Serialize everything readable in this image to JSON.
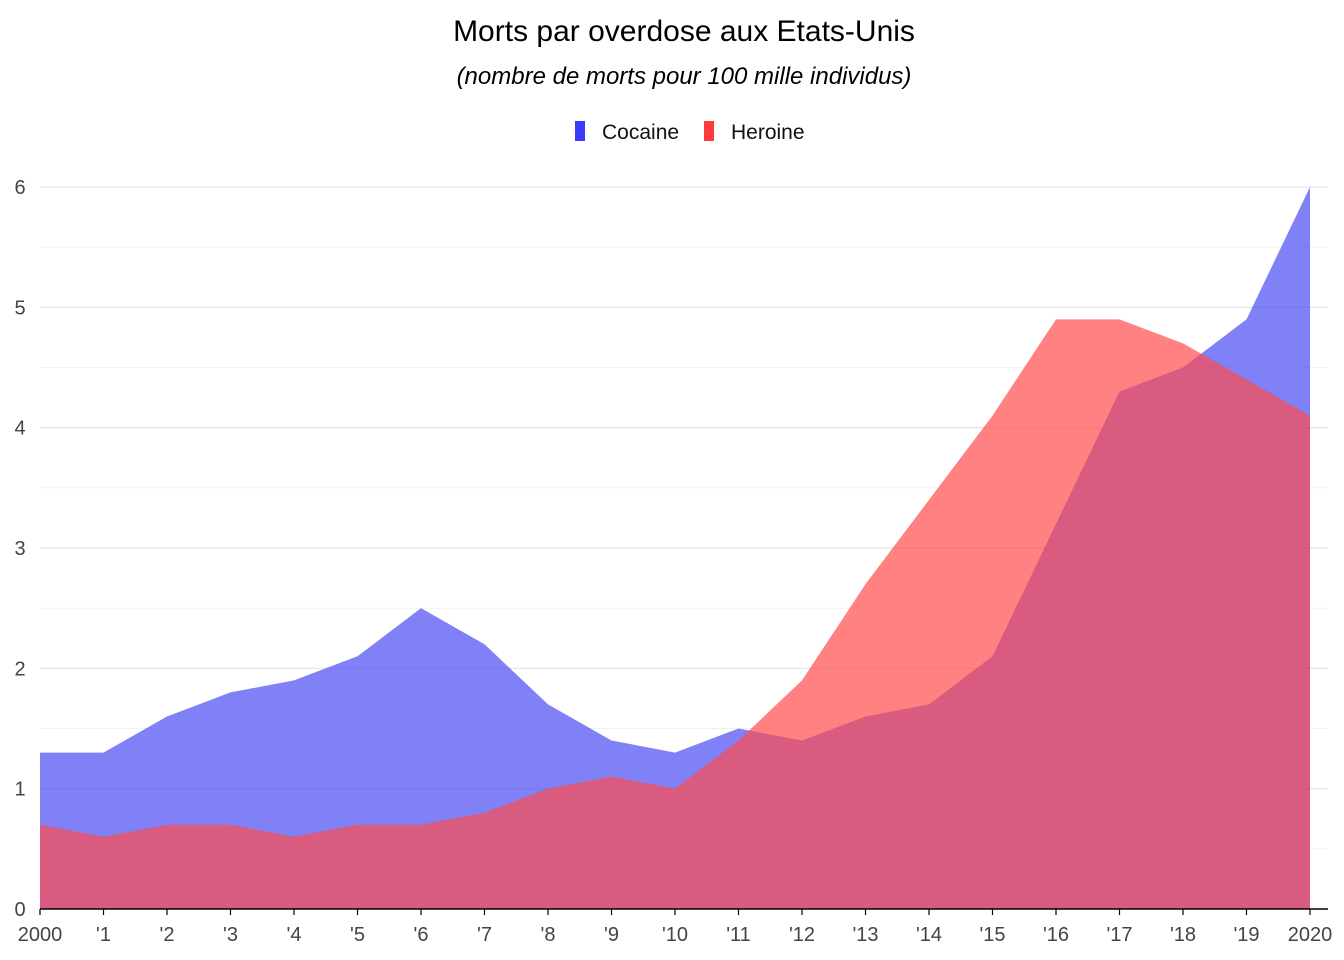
{
  "chart_data": {
    "type": "area",
    "title": "Morts par overdose aux Etats-Unis",
    "subtitle": "(nombre de morts pour 100 mille individus)",
    "xlabel": "",
    "ylabel": "",
    "x": [
      2000,
      2001,
      2002,
      2003,
      2004,
      2005,
      2006,
      2007,
      2008,
      2009,
      2010,
      2011,
      2012,
      2013,
      2014,
      2015,
      2016,
      2017,
      2018,
      2019,
      2020
    ],
    "x_tick_labels": [
      "2000",
      "'1",
      "'2",
      "'3",
      "'4",
      "'5",
      "'6",
      "'7",
      "'8",
      "'9",
      "'10",
      "'11",
      "'12",
      "'13",
      "'14",
      "'15",
      "'16",
      "'17",
      "'18",
      "'19",
      "2020"
    ],
    "y_ticks": [
      0,
      1,
      2,
      3,
      4,
      5,
      6
    ],
    "ylim": [
      0,
      6
    ],
    "grid": true,
    "legend_position": "top-center",
    "series": [
      {
        "name": "Cocaine",
        "color": "#4a4af4",
        "legend_color": "#3b3bff",
        "values": [
          1.3,
          1.3,
          1.6,
          1.8,
          1.9,
          2.1,
          2.5,
          2.2,
          1.7,
          1.4,
          1.3,
          1.5,
          1.4,
          1.6,
          1.7,
          2.1,
          3.2,
          4.3,
          4.5,
          4.9,
          6.0
        ]
      },
      {
        "name": "Heroine",
        "color": "#ff4c4c",
        "legend_color": "#ff3b3b",
        "values": [
          0.7,
          0.6,
          0.7,
          0.7,
          0.6,
          0.7,
          0.7,
          0.8,
          1.0,
          1.1,
          1.0,
          1.4,
          1.9,
          2.7,
          3.4,
          4.1,
          4.9,
          4.9,
          4.7,
          4.4,
          4.1
        ]
      }
    ]
  }
}
